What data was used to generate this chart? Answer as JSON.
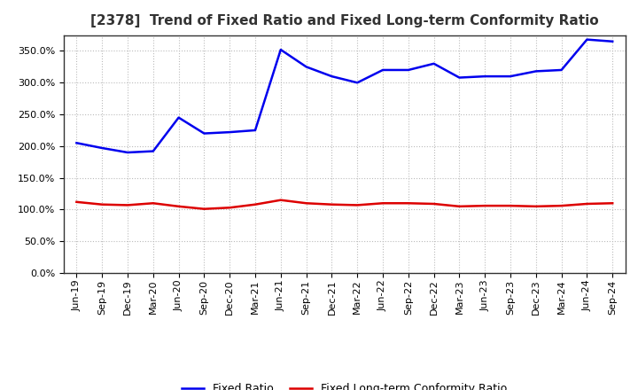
{
  "title": "[2378]  Trend of Fixed Ratio and Fixed Long-term Conformity Ratio",
  "x_labels": [
    "Jun-19",
    "Sep-19",
    "Dec-19",
    "Mar-20",
    "Jun-20",
    "Sep-20",
    "Dec-20",
    "Mar-21",
    "Jun-21",
    "Sep-21",
    "Dec-21",
    "Mar-22",
    "Jun-22",
    "Sep-22",
    "Dec-22",
    "Mar-23",
    "Jun-23",
    "Sep-23",
    "Dec-23",
    "Mar-24",
    "Jun-24",
    "Sep-24"
  ],
  "fixed_ratio": [
    205,
    197,
    190,
    192,
    245,
    220,
    222,
    225,
    352,
    325,
    310,
    300,
    320,
    320,
    330,
    308,
    310,
    310,
    318,
    320,
    368,
    365
  ],
  "fixed_lt_ratio": [
    112,
    108,
    107,
    110,
    105,
    101,
    103,
    108,
    115,
    110,
    108,
    107,
    110,
    110,
    109,
    105,
    106,
    106,
    105,
    106,
    109,
    110
  ],
  "ylim": [
    0,
    375
  ],
  "yticks": [
    0,
    50,
    100,
    150,
    200,
    250,
    300,
    350
  ],
  "blue_color": "#0000EE",
  "red_color": "#DD0000",
  "grid_color": "#bbbbbb",
  "bg_color": "#ffffff",
  "plot_bg_color": "#ffffff",
  "legend_fixed_ratio": "Fixed Ratio",
  "legend_fixed_lt_ratio": "Fixed Long-term Conformity Ratio",
  "title_fontsize": 11,
  "tick_fontsize": 8,
  "legend_fontsize": 9,
  "line_width": 1.8
}
